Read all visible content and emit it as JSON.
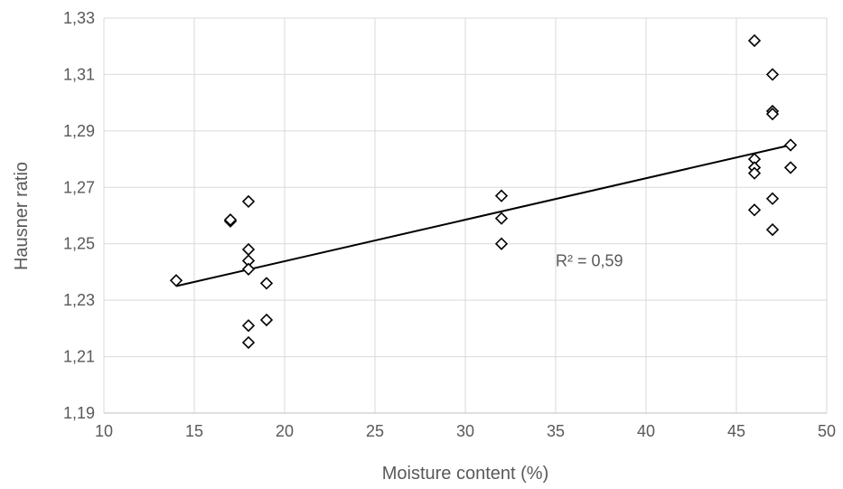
{
  "chart_data": {
    "type": "scatter",
    "title": "",
    "xlabel": "Moisture content (%)",
    "ylabel": "Hausner ratio",
    "xlim": [
      10,
      50
    ],
    "ylim": [
      1.19,
      1.33
    ],
    "x_ticks": [
      10,
      15,
      20,
      25,
      30,
      35,
      40,
      45,
      50
    ],
    "x_tick_labels": [
      "10",
      "15",
      "20",
      "25",
      "30",
      "35",
      "40",
      "45",
      "50"
    ],
    "y_ticks": [
      1.19,
      1.21,
      1.23,
      1.25,
      1.27,
      1.29,
      1.31,
      1.33
    ],
    "y_tick_labels": [
      "1,19",
      "1,21",
      "1,23",
      "1,25",
      "1,27",
      "1,29",
      "1,31",
      "1,33"
    ],
    "grid": true,
    "legend": "none",
    "marker": "diamond-open",
    "series": [
      {
        "points": [
          {
            "x": 14,
            "y": 1.237
          },
          {
            "x": 17,
            "y": 1.258
          },
          {
            "x": 17,
            "y": 1.2585
          },
          {
            "x": 18,
            "y": 1.265
          },
          {
            "x": 18,
            "y": 1.248
          },
          {
            "x": 18,
            "y": 1.244
          },
          {
            "x": 18,
            "y": 1.241
          },
          {
            "x": 18,
            "y": 1.221
          },
          {
            "x": 18,
            "y": 1.215
          },
          {
            "x": 19,
            "y": 1.236
          },
          {
            "x": 19,
            "y": 1.223
          },
          {
            "x": 32,
            "y": 1.267
          },
          {
            "x": 32,
            "y": 1.259
          },
          {
            "x": 32,
            "y": 1.25
          },
          {
            "x": 46,
            "y": 1.322
          },
          {
            "x": 46,
            "y": 1.28
          },
          {
            "x": 46,
            "y": 1.277
          },
          {
            "x": 46,
            "y": 1.275
          },
          {
            "x": 46,
            "y": 1.262
          },
          {
            "x": 47,
            "y": 1.31
          },
          {
            "x": 47,
            "y": 1.297
          },
          {
            "x": 47,
            "y": 1.296
          },
          {
            "x": 47,
            "y": 1.266
          },
          {
            "x": 47,
            "y": 1.255
          },
          {
            "x": 48,
            "y": 1.285
          },
          {
            "x": 48,
            "y": 1.277
          }
        ]
      }
    ],
    "trendline": {
      "type": "linear",
      "x_start": 14,
      "y_start": 1.235,
      "x_end": 48,
      "y_end": 1.285
    },
    "annotations": [
      {
        "text": "R² = 0,59",
        "x": 35,
        "y": 1.242
      }
    ],
    "colors": {
      "marker": "#000000",
      "trendline": "#000000",
      "grid": "#d9d9d9",
      "text": "#595959"
    }
  }
}
